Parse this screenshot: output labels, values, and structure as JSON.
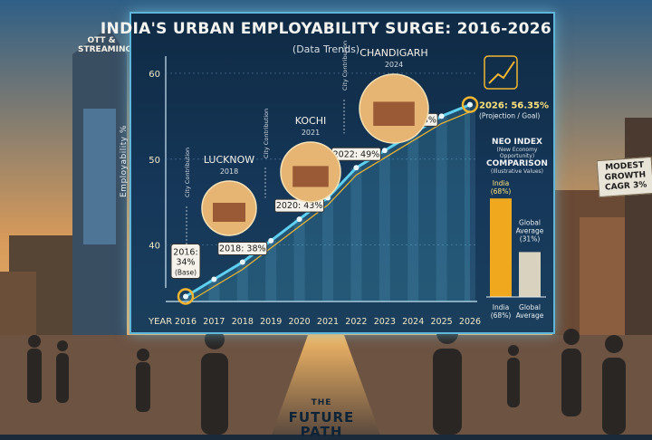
{
  "title": "INDIA'S URBAN EMPLOYABILITY SURGE: 2016-2026",
  "subtitle": "(Data Trends)",
  "ylabel": "Employability %",
  "x_axis_word": "YEAR",
  "neo_index": {
    "heading": "NEO INDEX",
    "note": "(New Economy Opportunity)",
    "heading2": "COMPARISON",
    "note2": "(Illustrative Values)",
    "india_top": "India",
    "india_top_value": "(68%)",
    "global_label": "Global",
    "global_label2": "Average",
    "global_value": "(31%)",
    "india_bottom": "India",
    "india_bottom_value": "(68%)",
    "global_bottom": "Global",
    "global_bottom2": "Average"
  },
  "cities": [
    {
      "name": "LUCKNOW",
      "year": "2018",
      "tag": "City Contribution"
    },
    {
      "name": "KOCHI",
      "year": "2021",
      "tag": "City Contribution"
    },
    {
      "name": "CHANDIGARH",
      "year": "2024",
      "tag": "City Contribution"
    }
  ],
  "side_sign": {
    "line1": "MODEST",
    "line2": "GROWTH",
    "line3": "CAGR 3%"
  },
  "ott_sign": {
    "line1": "OTT &",
    "line2": "STREAMING"
  },
  "road": {
    "the": "THE",
    "line1": "FUTURE",
    "line2": "PATH"
  },
  "colors": {
    "accent": "#f2b632",
    "line": "#5fd0f0",
    "panel_border": "#5fb6d8",
    "india_bar": "#f0a81e",
    "global_bar": "#d9d2bf"
  },
  "chart_data": [
    {
      "type": "line",
      "title": "INDIA'S URBAN EMPLOYABILITY SURGE: 2016-2026",
      "subtitle": "(Data Trends)",
      "xlabel": "YEAR",
      "ylabel": "Employability %",
      "x": [
        2016,
        2017,
        2018,
        2019,
        2020,
        2021,
        2022,
        2023,
        2024,
        2025,
        2026
      ],
      "x_tick_labels": [
        "2016",
        "2017",
        "2018",
        "2019",
        "2020",
        "2021",
        "2022",
        "2023",
        "2024",
        "2025",
        "2026"
      ],
      "y_ticks": [
        40,
        50,
        60
      ],
      "ylim": [
        35,
        62
      ],
      "series": [
        {
          "values": [
            34,
            36,
            38,
            40.5,
            43,
            45.5,
            49,
            51,
            53,
            55,
            56.35
          ]
        }
      ],
      "point_labels": [
        {
          "x": 2016,
          "lines": [
            "2016:",
            "34%",
            "(Base)"
          ]
        },
        {
          "x": 2018,
          "lines": [
            "2018: 38%"
          ]
        },
        {
          "x": 2020,
          "lines": [
            "2020: 43%"
          ]
        },
        {
          "x": 2022,
          "lines": [
            "2022: 49%"
          ]
        },
        {
          "x": 2024,
          "lines": [
            "2024: 53%"
          ]
        },
        {
          "x": 2026,
          "lines": [
            "2026: 56.35%",
            "(Projection / Goal)"
          ]
        }
      ]
    },
    {
      "type": "bar",
      "title": "NEO INDEX COMPARISON",
      "categories": [
        "India",
        "Global Average"
      ],
      "values": [
        68,
        31
      ],
      "ylim": [
        0,
        70
      ]
    }
  ]
}
